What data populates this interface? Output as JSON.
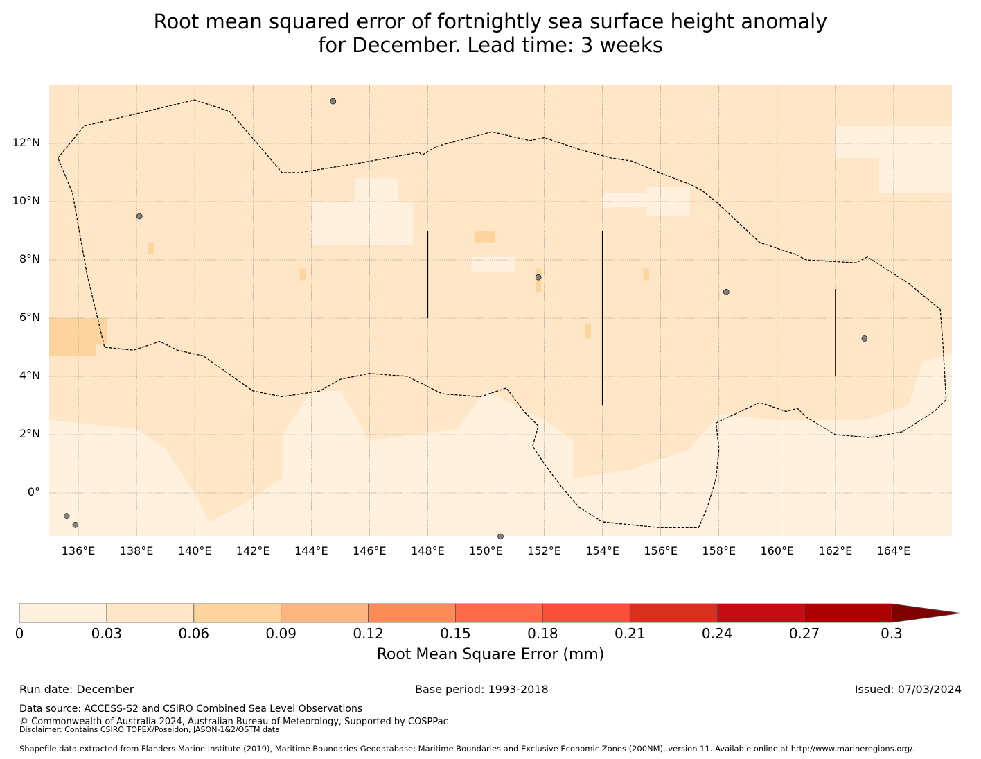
{
  "title": {
    "line1": "Root mean squared error of fortnightly sea surface height anomaly",
    "line2": "for December. Lead time: 3 weeks"
  },
  "map": {
    "lon_range": [
      135,
      166
    ],
    "lat_range": [
      -1.5,
      14
    ],
    "lon_ticks": [
      136,
      138,
      140,
      142,
      144,
      146,
      148,
      150,
      152,
      154,
      156,
      158,
      160,
      162,
      164
    ],
    "lon_tick_labels": [
      "136°E",
      "138°E",
      "140°E",
      "142°E",
      "144°E",
      "146°E",
      "148°E",
      "150°E",
      "152°E",
      "154°E",
      "156°E",
      "158°E",
      "160°E",
      "162°E",
      "164°E"
    ],
    "lat_ticks": [
      12,
      10,
      8,
      6,
      4,
      2,
      0
    ],
    "lat_tick_labels": [
      "12°N",
      "10°N",
      "8°N",
      "6°N",
      "4°N",
      "2°N",
      "0°"
    ],
    "dominant_value": "0.03–0.06",
    "eez_boundary_lonlat": [
      [
        135.3,
        11.5
      ],
      [
        136.2,
        12.6
      ],
      [
        137.9,
        13.0
      ],
      [
        140.0,
        13.5
      ],
      [
        141.2,
        13.1
      ],
      [
        143.0,
        11.0
      ],
      [
        143.6,
        11.0
      ],
      [
        145.5,
        11.3
      ],
      [
        147.7,
        11.7
      ],
      [
        147.8,
        11.6
      ],
      [
        148.3,
        11.9
      ],
      [
        150.2,
        12.4
      ],
      [
        151.5,
        12.1
      ],
      [
        152.0,
        12.2
      ],
      [
        153.2,
        11.8
      ],
      [
        154.3,
        11.5
      ],
      [
        155.0,
        11.4
      ],
      [
        156.2,
        10.9
      ],
      [
        157.0,
        10.6
      ],
      [
        157.4,
        10.4
      ],
      [
        157.9,
        10.0
      ],
      [
        159.4,
        8.6
      ],
      [
        160.6,
        8.2
      ],
      [
        161.0,
        8.0
      ],
      [
        162.7,
        7.9
      ],
      [
        163.1,
        8.1
      ],
      [
        164.5,
        7.2
      ],
      [
        165.6,
        6.3
      ],
      [
        165.7,
        5.0
      ],
      [
        165.8,
        3.2
      ],
      [
        165.4,
        2.8
      ],
      [
        164.3,
        2.1
      ],
      [
        163.2,
        1.9
      ],
      [
        162.0,
        2.0
      ],
      [
        161.0,
        2.6
      ],
      [
        160.7,
        2.9
      ],
      [
        160.3,
        2.8
      ],
      [
        159.4,
        3.1
      ],
      [
        158.1,
        2.5
      ],
      [
        157.9,
        2.4
      ],
      [
        158.0,
        1.5
      ],
      [
        157.9,
        0.5
      ],
      [
        157.6,
        -0.5
      ],
      [
        157.3,
        -1.2
      ],
      [
        156.0,
        -1.2
      ],
      [
        154.0,
        -1.0
      ],
      [
        153.2,
        -0.5
      ],
      [
        152.6,
        0.2
      ],
      [
        152.0,
        1.0
      ],
      [
        151.6,
        1.6
      ],
      [
        151.8,
        2.3
      ],
      [
        151.3,
        2.8
      ],
      [
        150.7,
        3.6
      ],
      [
        149.8,
        3.3
      ],
      [
        148.5,
        3.4
      ],
      [
        147.3,
        4.0
      ],
      [
        146.0,
        4.1
      ],
      [
        145.0,
        3.9
      ],
      [
        144.3,
        3.5
      ],
      [
        143.0,
        3.3
      ],
      [
        142.0,
        3.5
      ],
      [
        141.0,
        4.2
      ],
      [
        140.3,
        4.7
      ],
      [
        139.4,
        4.9
      ],
      [
        138.8,
        5.2
      ],
      [
        137.9,
        4.9
      ],
      [
        136.9,
        5.0
      ],
      [
        136.3,
        7.5
      ],
      [
        135.8,
        10.3
      ],
      [
        135.3,
        11.5
      ]
    ],
    "boundary_segments_lonlat": [
      [
        [
          148.0,
          9.0
        ],
        [
          148.0,
          6.0
        ]
      ],
      [
        [
          154.0,
          9.0
        ],
        [
          154.0,
          3.0
        ]
      ],
      [
        [
          162.0,
          7.0
        ],
        [
          162.0,
          4.0
        ]
      ]
    ],
    "land_lonlat": [
      [
        144.75,
        13.45
      ],
      [
        138.1,
        9.5
      ],
      [
        158.25,
        6.9
      ],
      [
        163.0,
        5.3
      ],
      [
        151.8,
        7.4
      ],
      [
        135.6,
        -0.8
      ],
      [
        135.9,
        -1.1
      ],
      [
        150.5,
        -1.5
      ]
    ]
  },
  "colorbar": {
    "boundaries": [
      0,
      0.03,
      0.06,
      0.09,
      0.12,
      0.15,
      0.18,
      0.21,
      0.24,
      0.27,
      0.3
    ],
    "tick_labels": [
      "0",
      "0.03",
      "0.06",
      "0.09",
      "0.12",
      "0.15",
      "0.18",
      "0.21",
      "0.24",
      "0.27",
      "0.3"
    ],
    "colors": [
      "#fff1de",
      "#fee6c6",
      "#fdd49e",
      "#fdb67f",
      "#fc8d59",
      "#fc6b4a",
      "#fb4f3a",
      "#d7301f",
      "#c40c12",
      "#ad0000"
    ],
    "extend_color": "#7f0000",
    "label": "Root Mean Square Error (mm)"
  },
  "colors": {
    "cell_low": "#fff1de",
    "cell_mid": "#fee6c6",
    "cell_high": "#fdd49e",
    "land": "#808080",
    "grid": "#888888",
    "boundary": "#000000"
  },
  "footer": {
    "run_date": "Run date: December",
    "base_period": "Base period: 1993-2018",
    "issued": "Issued: 07/03/2024",
    "data_source": "Data source: ACCESS-S2 and CSIRO Combined Sea Level Observations",
    "copyright": "© Commonwealth of Australia 2024, Australian Bureau of Meteorology, Supported by COSPPac",
    "disclaimer": "Disclaimer: Contains CSIRO TOPEX/Poseidon, JASON-1&2/OSTM data",
    "shapefile": "Shapefile data extracted from Flanders Marine Institute (2019), Maritime Boundaries Geodatabase: Maritime Boundaries and Exclusive Economic Zones (200NM), version 11. Available online at http://www.marineregions.org/."
  }
}
